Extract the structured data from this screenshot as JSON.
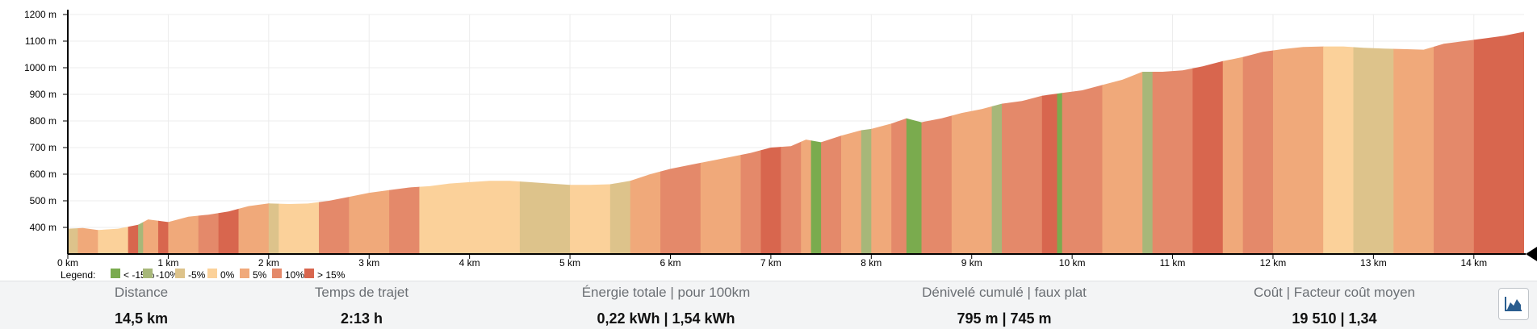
{
  "chart_data": {
    "type": "area",
    "title": "",
    "xlabel": "",
    "ylabel": "",
    "x_unit": "km",
    "y_unit": "m",
    "xlim": [
      0,
      14.5
    ],
    "ylim": [
      300,
      1200
    ],
    "x_ticks": [
      0,
      1,
      2,
      3,
      4,
      5,
      6,
      7,
      8,
      9,
      10,
      11,
      12,
      13,
      14
    ],
    "x_tick_labels": [
      "0 km",
      "1 km",
      "2 km",
      "3 km",
      "4 km",
      "5 km",
      "6 km",
      "7 km",
      "8 km",
      "9 km",
      "10 km",
      "11 km",
      "12 km",
      "13 km",
      "14 km"
    ],
    "y_ticks": [
      400,
      500,
      600,
      700,
      800,
      900,
      1000,
      1100,
      1200
    ],
    "y_tick_labels": [
      "400 m",
      "500 m",
      "600 m",
      "700 m",
      "800 m",
      "900 m",
      "1000 m",
      "1100 m",
      "1200 m"
    ],
    "grid": true,
    "elevation_profile": {
      "x": [
        0,
        0.15,
        0.3,
        0.5,
        0.7,
        0.8,
        0.9,
        1.0,
        1.2,
        1.4,
        1.6,
        1.8,
        2.0,
        2.2,
        2.4,
        2.6,
        2.8,
        3.0,
        3.2,
        3.4,
        3.6,
        3.8,
        4.0,
        4.2,
        4.4,
        4.6,
        4.8,
        5.0,
        5.2,
        5.4,
        5.6,
        5.8,
        6.0,
        6.2,
        6.4,
        6.6,
        6.8,
        7.0,
        7.2,
        7.35,
        7.5,
        7.7,
        7.9,
        8.0,
        8.2,
        8.35,
        8.5,
        8.7,
        8.9,
        9.1,
        9.3,
        9.5,
        9.7,
        9.9,
        10.1,
        10.3,
        10.5,
        10.7,
        10.9,
        11.1,
        11.3,
        11.5,
        11.7,
        11.9,
        12.1,
        12.3,
        12.5,
        12.7,
        12.9,
        13.1,
        13.3,
        13.5,
        13.7,
        13.9,
        14.1,
        14.3,
        14.5
      ],
      "y": [
        395,
        398,
        390,
        395,
        410,
        430,
        425,
        420,
        440,
        448,
        460,
        480,
        490,
        488,
        490,
        500,
        515,
        530,
        540,
        550,
        555,
        565,
        570,
        575,
        575,
        570,
        565,
        560,
        560,
        562,
        575,
        600,
        620,
        635,
        650,
        665,
        680,
        700,
        705,
        730,
        720,
        745,
        765,
        770,
        790,
        810,
        795,
        810,
        830,
        845,
        865,
        875,
        895,
        905,
        915,
        935,
        955,
        985,
        985,
        990,
        1005,
        1025,
        1040,
        1060,
        1070,
        1078,
        1080,
        1080,
        1075,
        1072,
        1070,
        1068,
        1090,
        1100,
        1110,
        1120,
        1135
      ]
    },
    "slope_segments": [
      {
        "x0": 0.0,
        "x1": 0.1,
        "c": 2
      },
      {
        "x0": 0.1,
        "x1": 0.3,
        "c": 4
      },
      {
        "x0": 0.3,
        "x1": 0.6,
        "c": 3
      },
      {
        "x0": 0.6,
        "x1": 0.7,
        "c": 6
      },
      {
        "x0": 0.7,
        "x1": 0.75,
        "c": 1
      },
      {
        "x0": 0.75,
        "x1": 0.9,
        "c": 4
      },
      {
        "x0": 0.9,
        "x1": 1.0,
        "c": 6
      },
      {
        "x0": 1.0,
        "x1": 1.3,
        "c": 4
      },
      {
        "x0": 1.3,
        "x1": 1.5,
        "c": 5
      },
      {
        "x0": 1.5,
        "x1": 1.7,
        "c": 6
      },
      {
        "x0": 1.7,
        "x1": 2.0,
        "c": 4
      },
      {
        "x0": 2.0,
        "x1": 2.1,
        "c": 2
      },
      {
        "x0": 2.1,
        "x1": 2.5,
        "c": 3
      },
      {
        "x0": 2.5,
        "x1": 2.8,
        "c": 5
      },
      {
        "x0": 2.8,
        "x1": 3.2,
        "c": 4
      },
      {
        "x0": 3.2,
        "x1": 3.5,
        "c": 5
      },
      {
        "x0": 3.5,
        "x1": 4.0,
        "c": 3
      },
      {
        "x0": 4.0,
        "x1": 4.5,
        "c": 3
      },
      {
        "x0": 4.5,
        "x1": 5.0,
        "c": 2
      },
      {
        "x0": 5.0,
        "x1": 5.4,
        "c": 3
      },
      {
        "x0": 5.4,
        "x1": 5.6,
        "c": 2
      },
      {
        "x0": 5.6,
        "x1": 5.9,
        "c": 4
      },
      {
        "x0": 5.9,
        "x1": 6.3,
        "c": 5
      },
      {
        "x0": 6.3,
        "x1": 6.7,
        "c": 4
      },
      {
        "x0": 6.7,
        "x1": 6.9,
        "c": 5
      },
      {
        "x0": 6.9,
        "x1": 7.1,
        "c": 6
      },
      {
        "x0": 7.1,
        "x1": 7.3,
        "c": 5
      },
      {
        "x0": 7.3,
        "x1": 7.4,
        "c": 4
      },
      {
        "x0": 7.4,
        "x1": 7.5,
        "c": 0
      },
      {
        "x0": 7.5,
        "x1": 7.7,
        "c": 5
      },
      {
        "x0": 7.7,
        "x1": 7.9,
        "c": 4
      },
      {
        "x0": 7.9,
        "x1": 8.0,
        "c": 1
      },
      {
        "x0": 8.0,
        "x1": 8.2,
        "c": 4
      },
      {
        "x0": 8.2,
        "x1": 8.35,
        "c": 5
      },
      {
        "x0": 8.35,
        "x1": 8.5,
        "c": 0
      },
      {
        "x0": 8.5,
        "x1": 8.8,
        "c": 5
      },
      {
        "x0": 8.8,
        "x1": 9.2,
        "c": 4
      },
      {
        "x0": 9.2,
        "x1": 9.3,
        "c": 1
      },
      {
        "x0": 9.3,
        "x1": 9.7,
        "c": 5
      },
      {
        "x0": 9.7,
        "x1": 9.85,
        "c": 6
      },
      {
        "x0": 9.85,
        "x1": 9.9,
        "c": 0
      },
      {
        "x0": 9.9,
        "x1": 10.3,
        "c": 5
      },
      {
        "x0": 10.3,
        "x1": 10.7,
        "c": 4
      },
      {
        "x0": 10.7,
        "x1": 10.8,
        "c": 1
      },
      {
        "x0": 10.8,
        "x1": 11.2,
        "c": 5
      },
      {
        "x0": 11.2,
        "x1": 11.5,
        "c": 6
      },
      {
        "x0": 11.5,
        "x1": 11.7,
        "c": 4
      },
      {
        "x0": 11.7,
        "x1": 12.0,
        "c": 5
      },
      {
        "x0": 12.0,
        "x1": 12.5,
        "c": 4
      },
      {
        "x0": 12.5,
        "x1": 12.8,
        "c": 3
      },
      {
        "x0": 12.8,
        "x1": 13.2,
        "c": 2
      },
      {
        "x0": 13.2,
        "x1": 13.6,
        "c": 4
      },
      {
        "x0": 13.6,
        "x1": 14.0,
        "c": 5
      },
      {
        "x0": 14.0,
        "x1": 14.5,
        "c": 6
      }
    ],
    "legend": {
      "title": "Legend:",
      "placement": "bottom-left",
      "items": [
        {
          "label": "< -15%",
          "color": "#7aab4e"
        },
        {
          "label": "-10%",
          "color": "#a7b779"
        },
        {
          "label": "-5%",
          "color": "#ddc38b"
        },
        {
          "label": "0%",
          "color": "#fbd19a"
        },
        {
          "label": "5%",
          "color": "#f0a97a"
        },
        {
          "label": "10%",
          "color": "#e4896a"
        },
        {
          "label": "> 15%",
          "color": "#d8664e"
        }
      ]
    }
  },
  "stats": [
    {
      "label": "Distance",
      "value": "14,5 km"
    },
    {
      "label": "Temps de trajet",
      "value": "2:13 h"
    },
    {
      "label": "Énergie totale | pour 100km",
      "value": "0,22 kWh | 1,54 kWh"
    },
    {
      "label": "Dénivelé cumulé | faux plat",
      "value": "795 m | 745 m"
    },
    {
      "label": "Coût | Facteur coût moyen",
      "value": "19 510 | 1,34"
    }
  ],
  "toolbar": {
    "chart_button_icon": "area-chart-icon"
  }
}
